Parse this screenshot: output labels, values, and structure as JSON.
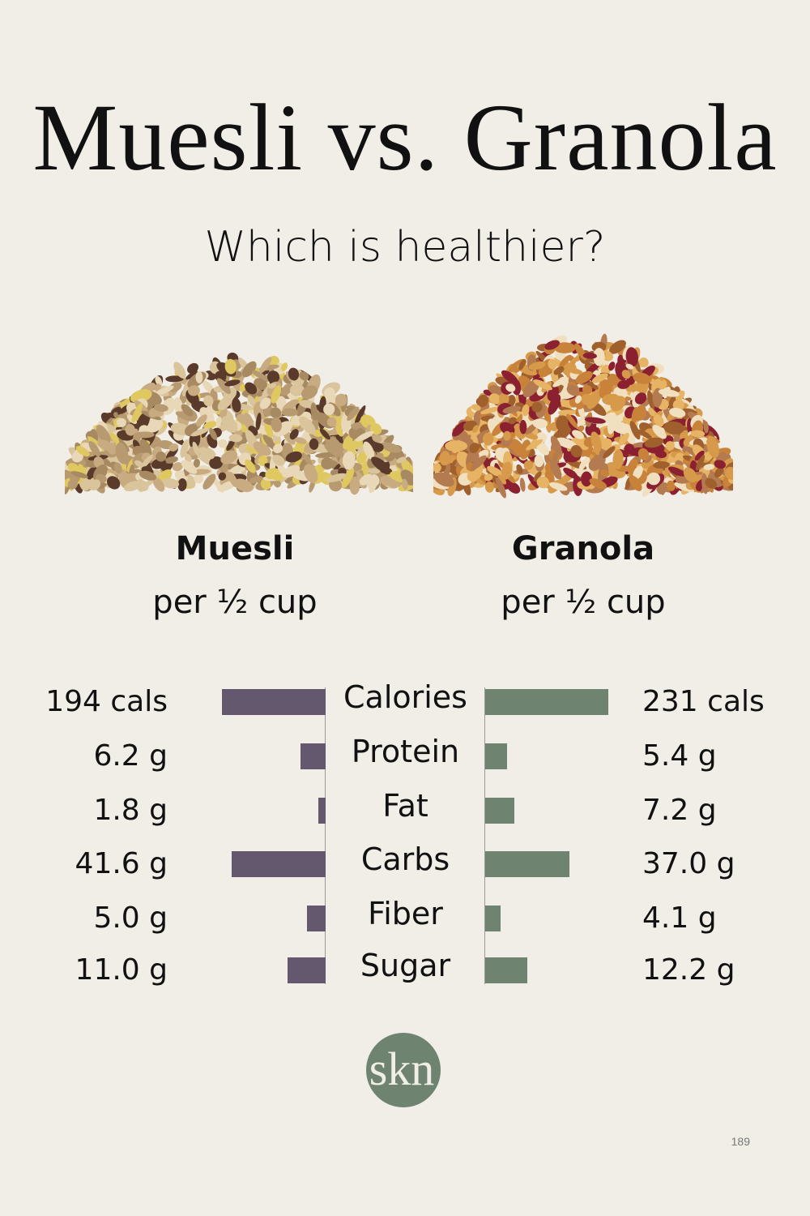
{
  "header": {
    "title": "Muesli vs. Granola",
    "subtitle": "Which is healthier?"
  },
  "foods": [
    {
      "name": "Muesli",
      "serving": "per ½ cup"
    },
    {
      "name": "Granola",
      "serving": "per ½ cup"
    }
  ],
  "chart_data": {
    "type": "bar",
    "orientation": "horizontal-diverging",
    "categories": [
      "Calories",
      "Protein",
      "Fat",
      "Carbs",
      "Fiber",
      "Sugar"
    ],
    "series": [
      {
        "name": "Muesli",
        "color": "#64586e",
        "values": [
          194,
          6.2,
          1.8,
          41.6,
          5.0,
          11.0
        ],
        "labels": [
          "194 cals",
          "6.2 g",
          "1.8 g",
          "41.6 g",
          "5.0 g",
          "11.0 g"
        ]
      },
      {
        "name": "Granola",
        "color": "#6e8470",
        "values": [
          231,
          5.4,
          7.2,
          37.0,
          4.1,
          12.2
        ],
        "labels": [
          "231 cals",
          "5.4 g",
          "7.2 g",
          "37.0 g",
          "4.1 g",
          "12.2 g"
        ]
      }
    ]
  },
  "logo": {
    "text": "skn",
    "color": "#6e8470"
  },
  "footer": {
    "page_number": "189"
  }
}
